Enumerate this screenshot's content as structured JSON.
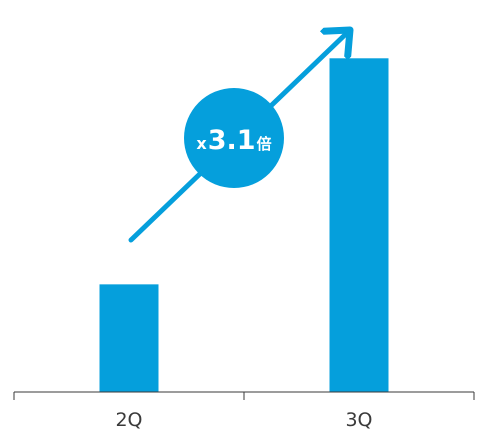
{
  "chart_data": {
    "type": "bar",
    "categories": [
      "2Q",
      "3Q"
    ],
    "values": [
      1,
      3.1
    ],
    "ylim": [
      0,
      3.4
    ],
    "grid": false,
    "legend": "none",
    "bar_color": "#059fdc",
    "axis_color": "#3a3a3a",
    "annotation": {
      "prefix": "x",
      "value": "3.1",
      "unit": "倍",
      "color": "#059fdc",
      "text_color": "#ffffff",
      "arrow": "up-right"
    }
  }
}
